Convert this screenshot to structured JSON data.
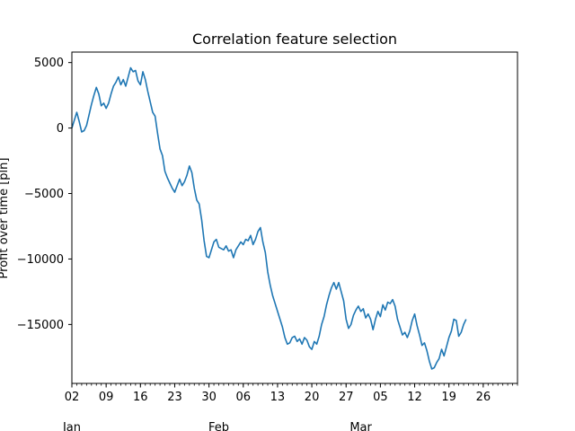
{
  "chart_data": {
    "type": "line",
    "title": "Correlation feature selection",
    "ylabel": "Profit over time [pln]",
    "xlabel": "",
    "x_range": [
      "2024-01-02",
      "2024-04-02"
    ],
    "ylim": [
      -19500,
      5800
    ],
    "y_ticks": [
      5000,
      0,
      -5000,
      -10000,
      -15000
    ],
    "y_tick_labels": [
      "5000",
      "0",
      "−5000",
      "−10000",
      "−15000"
    ],
    "x_major_ticks": [
      {
        "date": "2024-01-02",
        "label": "02"
      },
      {
        "date": "2024-01-09",
        "label": "09"
      },
      {
        "date": "2024-01-16",
        "label": "16"
      },
      {
        "date": "2024-01-23",
        "label": "23"
      },
      {
        "date": "2024-01-30",
        "label": "30"
      },
      {
        "date": "2024-02-06",
        "label": "06"
      },
      {
        "date": "2024-02-13",
        "label": "13"
      },
      {
        "date": "2024-02-20",
        "label": "20"
      },
      {
        "date": "2024-02-27",
        "label": "27"
      },
      {
        "date": "2024-03-05",
        "label": "05"
      },
      {
        "date": "2024-03-12",
        "label": "12"
      },
      {
        "date": "2024-03-19",
        "label": "19"
      },
      {
        "date": "2024-03-26",
        "label": "26"
      }
    ],
    "month_labels": [
      {
        "date": "2024-01-02",
        "label": "Jan"
      },
      {
        "date": "2024-02-01",
        "label": "Feb"
      },
      {
        "date": "2024-03-01",
        "label": "Mar"
      }
    ],
    "grid": false,
    "series": [
      {
        "color": "#1f77b4",
        "points": [
          [
            "2024-01-02",
            0
          ],
          [
            "2024-01-02 12:00",
            600
          ],
          [
            "2024-01-03",
            1200
          ],
          [
            "2024-01-03 12:00",
            500
          ],
          [
            "2024-01-04",
            -300
          ],
          [
            "2024-01-04 12:00",
            -200
          ],
          [
            "2024-01-05",
            200
          ],
          [
            "2024-01-05 12:00",
            1000
          ],
          [
            "2024-01-06",
            1800
          ],
          [
            "2024-01-06 12:00",
            2500
          ],
          [
            "2024-01-07",
            3100
          ],
          [
            "2024-01-07 12:00",
            2600
          ],
          [
            "2024-01-08",
            1700
          ],
          [
            "2024-01-08 12:00",
            1900
          ],
          [
            "2024-01-09",
            1500
          ],
          [
            "2024-01-09 12:00",
            1900
          ],
          [
            "2024-01-10",
            2600
          ],
          [
            "2024-01-10 12:00",
            3200
          ],
          [
            "2024-01-11",
            3500
          ],
          [
            "2024-01-11 12:00",
            3900
          ],
          [
            "2024-01-12",
            3300
          ],
          [
            "2024-01-12 12:00",
            3700
          ],
          [
            "2024-01-13",
            3200
          ],
          [
            "2024-01-13 12:00",
            3900
          ],
          [
            "2024-01-14",
            4600
          ],
          [
            "2024-01-14 12:00",
            4300
          ],
          [
            "2024-01-15",
            4400
          ],
          [
            "2024-01-15 12:00",
            3600
          ],
          [
            "2024-01-16",
            3300
          ],
          [
            "2024-01-16 12:00",
            4300
          ],
          [
            "2024-01-17",
            3700
          ],
          [
            "2024-01-17 12:00",
            2800
          ],
          [
            "2024-01-18",
            2000
          ],
          [
            "2024-01-18 12:00",
            1200
          ],
          [
            "2024-01-19",
            900
          ],
          [
            "2024-01-19 12:00",
            -400
          ],
          [
            "2024-01-20",
            -1600
          ],
          [
            "2024-01-20 12:00",
            -2100
          ],
          [
            "2024-01-21",
            -3300
          ],
          [
            "2024-01-21 12:00",
            -3800
          ],
          [
            "2024-01-22",
            -4200
          ],
          [
            "2024-01-22 12:00",
            -4600
          ],
          [
            "2024-01-23",
            -4900
          ],
          [
            "2024-01-23 12:00",
            -4400
          ],
          [
            "2024-01-24",
            -3900
          ],
          [
            "2024-01-24 12:00",
            -4400
          ],
          [
            "2024-01-25",
            -4100
          ],
          [
            "2024-01-25 12:00",
            -3600
          ],
          [
            "2024-01-26",
            -2900
          ],
          [
            "2024-01-26 12:00",
            -3400
          ],
          [
            "2024-01-27",
            -4600
          ],
          [
            "2024-01-27 12:00",
            -5500
          ],
          [
            "2024-01-28",
            -5800
          ],
          [
            "2024-01-28 12:00",
            -7000
          ],
          [
            "2024-01-29",
            -8600
          ],
          [
            "2024-01-29 12:00",
            -9800
          ],
          [
            "2024-01-30",
            -9900
          ],
          [
            "2024-01-30 12:00",
            -9300
          ],
          [
            "2024-01-31",
            -8700
          ],
          [
            "2024-01-31 12:00",
            -8500
          ],
          [
            "2024-02-01",
            -9100
          ],
          [
            "2024-02-01 12:00",
            -9200
          ],
          [
            "2024-02-02",
            -9300
          ],
          [
            "2024-02-02 12:00",
            -9000
          ],
          [
            "2024-02-03",
            -9400
          ],
          [
            "2024-02-03 12:00",
            -9300
          ],
          [
            "2024-02-04",
            -9900
          ],
          [
            "2024-02-04 12:00",
            -9300
          ],
          [
            "2024-02-05",
            -9000
          ],
          [
            "2024-02-05 12:00",
            -8700
          ],
          [
            "2024-02-06",
            -8900
          ],
          [
            "2024-02-06 12:00",
            -8500
          ],
          [
            "2024-02-07",
            -8600
          ],
          [
            "2024-02-07 12:00",
            -8200
          ],
          [
            "2024-02-08",
            -8900
          ],
          [
            "2024-02-08 12:00",
            -8500
          ],
          [
            "2024-02-09",
            -7900
          ],
          [
            "2024-02-09 12:00",
            -7600
          ],
          [
            "2024-02-10",
            -8700
          ],
          [
            "2024-02-10 12:00",
            -9500
          ],
          [
            "2024-02-11",
            -11000
          ],
          [
            "2024-02-11 12:00",
            -12000
          ],
          [
            "2024-02-12",
            -12800
          ],
          [
            "2024-02-12 12:00",
            -13400
          ],
          [
            "2024-02-13",
            -14000
          ],
          [
            "2024-02-13 12:00",
            -14600
          ],
          [
            "2024-02-14",
            -15200
          ],
          [
            "2024-02-14 12:00",
            -16000
          ],
          [
            "2024-02-15",
            -16500
          ],
          [
            "2024-02-15 12:00",
            -16400
          ],
          [
            "2024-02-16",
            -16000
          ],
          [
            "2024-02-16 12:00",
            -15900
          ],
          [
            "2024-02-17",
            -16300
          ],
          [
            "2024-02-17 12:00",
            -16100
          ],
          [
            "2024-02-18",
            -16500
          ],
          [
            "2024-02-18 12:00",
            -16000
          ],
          [
            "2024-02-19",
            -16200
          ],
          [
            "2024-02-19 12:00",
            -16700
          ],
          [
            "2024-02-20",
            -16900
          ],
          [
            "2024-02-20 12:00",
            -16300
          ],
          [
            "2024-02-21",
            -16500
          ],
          [
            "2024-02-21 12:00",
            -15900
          ],
          [
            "2024-02-22",
            -15000
          ],
          [
            "2024-02-22 12:00",
            -14400
          ],
          [
            "2024-02-23",
            -13500
          ],
          [
            "2024-02-23 12:00",
            -12800
          ],
          [
            "2024-02-24",
            -12200
          ],
          [
            "2024-02-24 12:00",
            -11800
          ],
          [
            "2024-02-25",
            -12300
          ],
          [
            "2024-02-25 12:00",
            -11800
          ],
          [
            "2024-02-26",
            -12500
          ],
          [
            "2024-02-26 12:00",
            -13200
          ],
          [
            "2024-02-27",
            -14600
          ],
          [
            "2024-02-27 12:00",
            -15300
          ],
          [
            "2024-02-28",
            -15000
          ],
          [
            "2024-02-28 12:00",
            -14300
          ],
          [
            "2024-02-29",
            -13900
          ],
          [
            "2024-02-29 12:00",
            -13600
          ],
          [
            "2024-03-01",
            -14000
          ],
          [
            "2024-03-01 12:00",
            -13800
          ],
          [
            "2024-03-02",
            -14500
          ],
          [
            "2024-03-02 12:00",
            -14200
          ],
          [
            "2024-03-03",
            -14600
          ],
          [
            "2024-03-03 12:00",
            -15400
          ],
          [
            "2024-03-04",
            -14600
          ],
          [
            "2024-03-04 12:00",
            -14000
          ],
          [
            "2024-03-05",
            -14400
          ],
          [
            "2024-03-05 12:00",
            -13500
          ],
          [
            "2024-03-06",
            -13900
          ],
          [
            "2024-03-06 12:00",
            -13300
          ],
          [
            "2024-03-07",
            -13400
          ],
          [
            "2024-03-07 12:00",
            -13100
          ],
          [
            "2024-03-08",
            -13600
          ],
          [
            "2024-03-08 12:00",
            -14600
          ],
          [
            "2024-03-09",
            -15200
          ],
          [
            "2024-03-09 12:00",
            -15800
          ],
          [
            "2024-03-10",
            -15600
          ],
          [
            "2024-03-10 12:00",
            -16000
          ],
          [
            "2024-03-11",
            -15500
          ],
          [
            "2024-03-11 12:00",
            -14700
          ],
          [
            "2024-03-12",
            -14200
          ],
          [
            "2024-03-12 12:00",
            -15100
          ],
          [
            "2024-03-13",
            -15800
          ],
          [
            "2024-03-13 12:00",
            -16600
          ],
          [
            "2024-03-14",
            -16400
          ],
          [
            "2024-03-14 12:00",
            -17000
          ],
          [
            "2024-03-15",
            -17800
          ],
          [
            "2024-03-15 12:00",
            -18400
          ],
          [
            "2024-03-16",
            -18300
          ],
          [
            "2024-03-16 12:00",
            -17900
          ],
          [
            "2024-03-17",
            -17600
          ],
          [
            "2024-03-17 12:00",
            -16900
          ],
          [
            "2024-03-18",
            -17400
          ],
          [
            "2024-03-18 12:00",
            -16700
          ],
          [
            "2024-03-19",
            -16000
          ],
          [
            "2024-03-19 12:00",
            -15500
          ],
          [
            "2024-03-20",
            -14600
          ],
          [
            "2024-03-20 12:00",
            -14700
          ],
          [
            "2024-03-21",
            -15900
          ],
          [
            "2024-03-21 12:00",
            -15600
          ],
          [
            "2024-03-22",
            -15000
          ],
          [
            "2024-03-22 12:00",
            -14600
          ]
        ]
      }
    ]
  }
}
